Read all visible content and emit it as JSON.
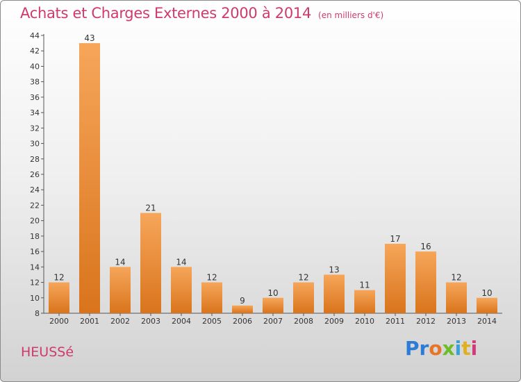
{
  "title": "Achats et Charges Externes 2000 à 2014",
  "subtitle": "(en milliers d'€)",
  "location": "HEUSSé",
  "logo": {
    "parts": [
      "Pr",
      "o",
      "x",
      "i",
      "t",
      "i"
    ]
  },
  "colors": {
    "bar_top": "#f6a65a",
    "bar_bottom": "#d9741c",
    "title": "#cf3a6a",
    "grid": "#d8d8d8"
  },
  "chart_data": {
    "type": "bar",
    "categories": [
      "2000",
      "2001",
      "2002",
      "2003",
      "2004",
      "2005",
      "2006",
      "2007",
      "2008",
      "2009",
      "2010",
      "2011",
      "2012",
      "2013",
      "2014"
    ],
    "values": [
      12,
      43,
      14,
      21,
      14,
      12,
      9,
      10,
      12,
      13,
      11,
      17,
      16,
      12,
      10
    ],
    "title": "Achats et Charges Externes 2000 à 2014",
    "ylim": [
      8,
      44
    ],
    "yticks": [
      8,
      10,
      12,
      14,
      16,
      18,
      20,
      22,
      24,
      26,
      28,
      30,
      32,
      34,
      36,
      38,
      40,
      42,
      44
    ],
    "grid": false,
    "data_labels": true
  }
}
